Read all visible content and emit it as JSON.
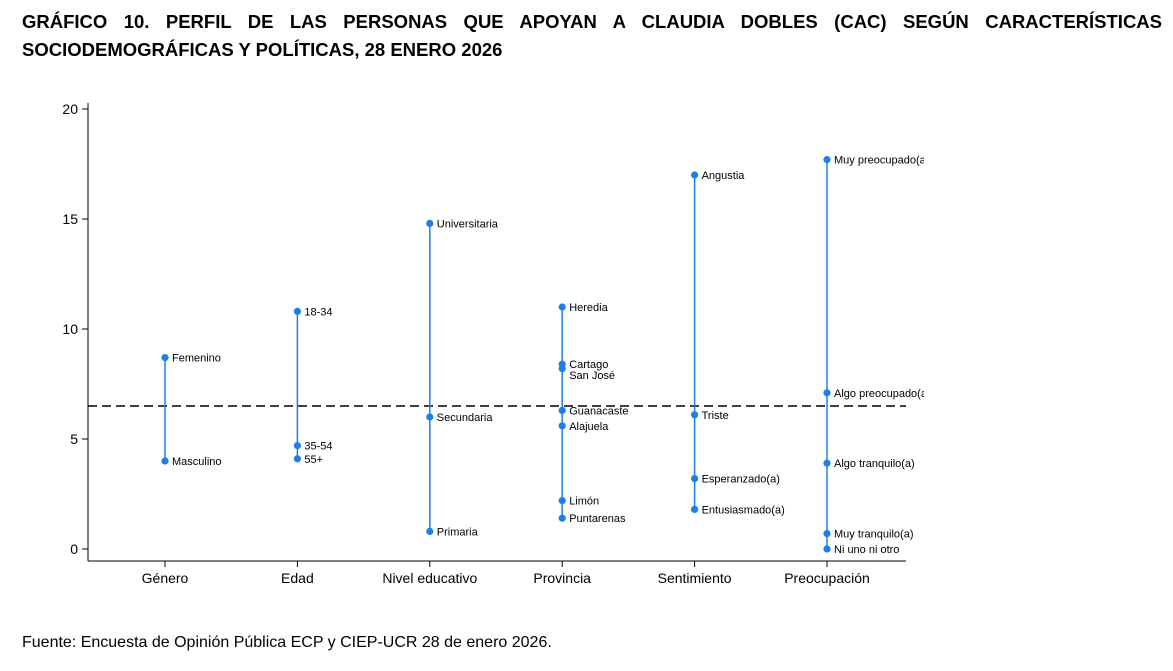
{
  "title": {
    "line1": "GRÁFICO 10. PERFIL DE LAS PERSONAS QUE APOYAN A CLAUDIA DOBLES (CAC) SEGÚN CARACTERÍSTICAS",
    "line2": "SOCIODEMOGRÁFICAS Y POLÍTICAS, 28 ENERO 2026"
  },
  "source": "Fuente: Encuesta de Opinión Pública ECP y CIEP-UCR 28 de enero 2026.",
  "colors": {
    "series": "#1f7fe8",
    "reference_line": "#000000"
  },
  "chart_data": {
    "type": "scatter",
    "title": "",
    "xlabel": "",
    "ylabel": "",
    "ylim": [
      0,
      20
    ],
    "yticks": [
      0,
      5,
      10,
      15,
      20
    ],
    "grid": false,
    "legend": "none",
    "reference_line": {
      "y": 6.5,
      "style": "dashed"
    },
    "categories": [
      "Género",
      "Edad",
      "Nivel educativo",
      "Provincia",
      "Sentimiento",
      "Preocupación"
    ],
    "groups": [
      {
        "category": "Género",
        "points": [
          {
            "label": "Femenino",
            "value": 8.7
          },
          {
            "label": "Masculino",
            "value": 4.0
          }
        ]
      },
      {
        "category": "Edad",
        "points": [
          {
            "label": "18-34",
            "value": 10.8
          },
          {
            "label": "35-54",
            "value": 4.7
          },
          {
            "label": "55+",
            "value": 4.1
          }
        ]
      },
      {
        "category": "Nivel educativo",
        "points": [
          {
            "label": "Universitaria",
            "value": 14.8
          },
          {
            "label": "Secundaria",
            "value": 6.0
          },
          {
            "label": "Primaria",
            "value": 0.8
          }
        ]
      },
      {
        "category": "Provincia",
        "points": [
          {
            "label": "Heredia",
            "value": 11.0
          },
          {
            "label": "Cartago",
            "value": 8.4
          },
          {
            "label": "San José",
            "value": 8.2
          },
          {
            "label": "Guanacaste",
            "value": 6.3
          },
          {
            "label": "Alajuela",
            "value": 5.6
          },
          {
            "label": "Limón",
            "value": 2.2
          },
          {
            "label": "Puntarenas",
            "value": 1.4
          }
        ]
      },
      {
        "category": "Sentimiento",
        "points": [
          {
            "label": "Angustia",
            "value": 17.0
          },
          {
            "label": "Triste",
            "value": 6.1
          },
          {
            "label": "Esperanzado(a)",
            "value": 3.2
          },
          {
            "label": "Entusiasmado(a)",
            "value": 1.8
          }
        ]
      },
      {
        "category": "Preocupación",
        "points": [
          {
            "label": "Muy preocupado(a)",
            "value": 17.7
          },
          {
            "label": "Algo preocupado(a)",
            "value": 7.1
          },
          {
            "label": "Algo tranquilo(a)",
            "value": 3.9
          },
          {
            "label": "Muy tranquilo(a)",
            "value": 0.7
          },
          {
            "label": "Ni uno ni otro",
            "value": 0.0
          }
        ]
      }
    ]
  }
}
